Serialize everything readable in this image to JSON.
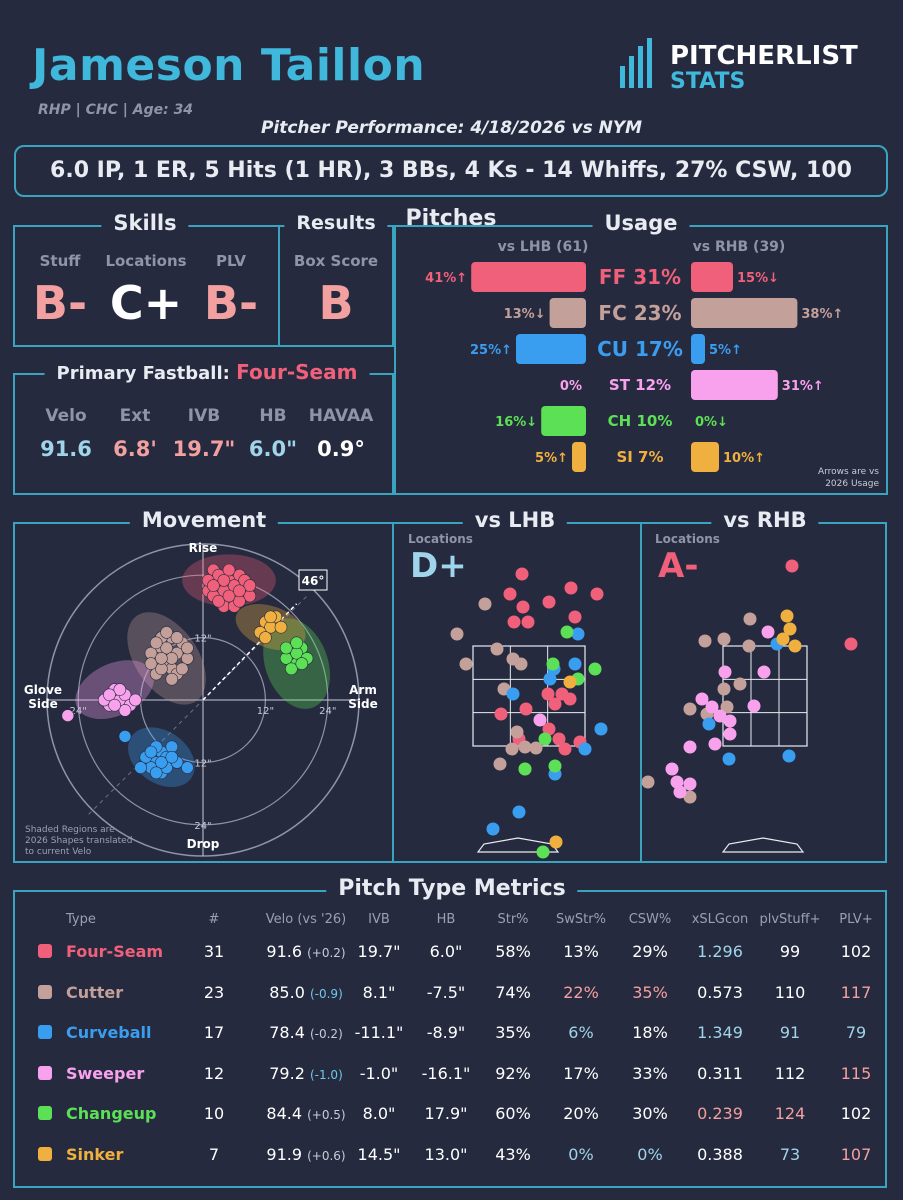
{
  "header": {
    "name": "Jameson Taillon",
    "subtitle": "RHP | CHC | Age: 34",
    "logo_line1": "PITCHERLIST",
    "logo_line2": "STATS",
    "performance": "Pitcher Performance: 4/18/2026 vs NYM",
    "statline": "6.0 IP, 1 ER, 5 Hits (1 HR), 3 BBs, 4 Ks - 14 Whiffs, 27% CSW, 100 Pitches"
  },
  "skills": {
    "title": "Skills",
    "items": [
      {
        "label": "Stuff",
        "grade": "B-",
        "color": "#f2a0a0"
      },
      {
        "label": "Locations",
        "grade": "C+",
        "color": "#ffffff"
      },
      {
        "label": "PLV",
        "grade": "B-",
        "color": "#f2a0a0"
      }
    ]
  },
  "results": {
    "title": "Results",
    "label": "Box Score",
    "grade": "B",
    "color": "#f2a0a0"
  },
  "primary": {
    "title": "Primary Fastball:",
    "pitch": "Four-Seam",
    "stats": [
      {
        "label": "Velo",
        "value": "91.6",
        "color": "#9fd4ea"
      },
      {
        "label": "Ext",
        "value": "6.8'",
        "color": "#f2a0a0"
      },
      {
        "label": "IVB",
        "value": "19.7\"",
        "color": "#f2a0a0"
      },
      {
        "label": "HB",
        "value": "6.0\"",
        "color": "#9fd4ea"
      },
      {
        "label": "HAVAA",
        "value": "0.9°",
        "color": "#ffffff"
      }
    ]
  },
  "usage": {
    "title": "Usage",
    "lhb_label": "vs LHB (61)",
    "rhb_label": "vs RHB (39)",
    "note_line1": "Arrows are vs",
    "note_line2": "2026 Usage",
    "rows": [
      {
        "label": "FF 31%",
        "color": "#f0607a",
        "lhb": 41,
        "lhb_text": "41%↑",
        "rhb": 15,
        "rhb_text": "15%↓"
      },
      {
        "label": "FC 23%",
        "color": "#c4a09a",
        "lhb": 13,
        "lhb_text": "13%↓",
        "rhb": 38,
        "rhb_text": "38%↑"
      },
      {
        "label": "CU 17%",
        "color": "#3a9ef0",
        "lhb": 25,
        "lhb_text": "25%↑",
        "rhb": 5,
        "rhb_text": "5%↑"
      },
      {
        "label": "ST 12%",
        "color": "#f8a2ee",
        "lhb": 0,
        "lhb_text": "0%",
        "rhb": 31,
        "rhb_text": "31%↑"
      },
      {
        "label": "CH 10%",
        "color": "#5ce055",
        "lhb": 16,
        "lhb_text": "16%↓",
        "rhb": 0,
        "rhb_text": "0%↓"
      },
      {
        "label": "SI 7%",
        "color": "#f0b040",
        "lhb": 5,
        "lhb_text": "5%↑",
        "rhb": 10,
        "rhb_text": "10%↑"
      }
    ]
  },
  "movement": {
    "title": "Movement",
    "rise": "Rise",
    "drop": "Drop",
    "glove": [
      "Glove",
      "Side"
    ],
    "arm": [
      "Arm",
      "Side"
    ],
    "ring_labels": [
      "12\"",
      "24\""
    ],
    "arm_angle": "46°",
    "note": [
      "Shaded Regions are",
      "2026 Shapes translated",
      "to current Velo"
    ]
  },
  "loc_lhb": {
    "title": "vs LHB",
    "label": "Locations",
    "grade": "D+",
    "color": "#9fd4ea"
  },
  "loc_rhb": {
    "title": "vs RHB",
    "label": "Locations",
    "grade": "A-",
    "color": "#f0607a"
  },
  "metrics": {
    "title": "Pitch Type Metrics",
    "headers": [
      "Type",
      "#",
      "Velo (vs '26)",
      "IVB",
      "HB",
      "Str%",
      "SwStr%",
      "CSW%",
      "xSLGcon",
      "plvStuff+",
      "PLV+"
    ],
    "rows": [
      {
        "name": "Four-Seam",
        "color": "#f0607a",
        "n": "31",
        "velo": "91.6",
        "vdiff": "(+0.2)",
        "vcol": "#c8ccd8",
        "ivb": "19.7\"",
        "hb": "6.0\"",
        "str": "58%",
        "str_c": "#ffffff",
        "sw": "13%",
        "sw_c": "#ffffff",
        "csw": "29%",
        "csw_c": "#ffffff",
        "xslg": "1.296",
        "xslg_c": "#9fd4ea",
        "stuff": "99",
        "stuff_c": "#ffffff",
        "plv": "102",
        "plv_c": "#ffffff"
      },
      {
        "name": "Cutter",
        "color": "#c4a09a",
        "n": "23",
        "velo": "85.0",
        "vdiff": "(-0.9)",
        "vcol": "#6ec8ec",
        "ivb": "8.1\"",
        "hb": "-7.5\"",
        "str": "74%",
        "str_c": "#ffffff",
        "sw": "22%",
        "sw_c": "#f2a0a0",
        "csw": "35%",
        "csw_c": "#f2a0a0",
        "xslg": "0.573",
        "xslg_c": "#ffffff",
        "stuff": "110",
        "stuff_c": "#ffffff",
        "plv": "117",
        "plv_c": "#f2a0a0"
      },
      {
        "name": "Curveball",
        "color": "#3a9ef0",
        "n": "17",
        "velo": "78.4",
        "vdiff": "(-0.2)",
        "vcol": "#c8ccd8",
        "ivb": "-11.1\"",
        "hb": "-8.9\"",
        "str": "35%",
        "str_c": "#ffffff",
        "sw": "6%",
        "sw_c": "#9fd4ea",
        "csw": "18%",
        "csw_c": "#ffffff",
        "xslg": "1.349",
        "xslg_c": "#9fd4ea",
        "stuff": "91",
        "stuff_c": "#9fd4ea",
        "plv": "79",
        "plv_c": "#9fd4ea"
      },
      {
        "name": "Sweeper",
        "color": "#f8a2ee",
        "n": "12",
        "velo": "79.2",
        "vdiff": "(-1.0)",
        "vcol": "#6ec8ec",
        "ivb": "-1.0\"",
        "hb": "-16.1\"",
        "str": "92%",
        "str_c": "#ffffff",
        "sw": "17%",
        "sw_c": "#ffffff",
        "csw": "33%",
        "csw_c": "#ffffff",
        "xslg": "0.311",
        "xslg_c": "#ffffff",
        "stuff": "112",
        "stuff_c": "#ffffff",
        "plv": "115",
        "plv_c": "#f2a0a0"
      },
      {
        "name": "Changeup",
        "color": "#5ce055",
        "n": "10",
        "velo": "84.4",
        "vdiff": "(+0.5)",
        "vcol": "#c8ccd8",
        "ivb": "8.0\"",
        "hb": "17.9\"",
        "str": "60%",
        "str_c": "#ffffff",
        "sw": "20%",
        "sw_c": "#ffffff",
        "csw": "30%",
        "csw_c": "#ffffff",
        "xslg": "0.239",
        "xslg_c": "#f2a0a0",
        "stuff": "124",
        "stuff_c": "#f2a0a0",
        "plv": "102",
        "plv_c": "#ffffff"
      },
      {
        "name": "Sinker",
        "color": "#f0b040",
        "n": "7",
        "velo": "91.9",
        "vdiff": "(+0.6)",
        "vcol": "#c8ccd8",
        "ivb": "14.5\"",
        "hb": "13.0\"",
        "str": "43%",
        "str_c": "#ffffff",
        "sw": "0%",
        "sw_c": "#9fd4ea",
        "csw": "0%",
        "csw_c": "#9fd4ea",
        "xslg": "0.388",
        "xslg_c": "#ffffff",
        "stuff": "73",
        "stuff_c": "#9fd4ea",
        "plv": "107",
        "plv_c": "#f2a0a0"
      }
    ]
  },
  "chart_data": [
    {
      "type": "bar",
      "title": "Usage",
      "categories": [
        "FF",
        "FC",
        "CU",
        "ST",
        "CH",
        "SI"
      ],
      "series": [
        {
          "name": "vs LHB (61)",
          "values": [
            41,
            13,
            25,
            0,
            16,
            5
          ]
        },
        {
          "name": "vs RHB (39)",
          "values": [
            15,
            38,
            5,
            31,
            0,
            10
          ]
        }
      ]
    },
    {
      "type": "scatter",
      "title": "Movement",
      "xlabel": "Arm Side",
      "ylabel": "Rise",
      "xlim": [
        -30,
        30
      ],
      "ylim": [
        -30,
        30
      ],
      "series": [
        {
          "name": "FF",
          "color": "#f0607a",
          "points": [
            [
              2,
              23
            ],
            [
              3,
              22
            ],
            [
              4,
              24
            ],
            [
              5,
              21
            ],
            [
              6,
              23
            ],
            [
              7,
              22
            ],
            [
              1,
              21
            ],
            [
              3,
              20
            ],
            [
              5,
              19
            ],
            [
              8,
              21
            ],
            [
              4,
              18
            ],
            [
              6,
              20
            ],
            [
              2,
              25
            ],
            [
              7,
              24
            ],
            [
              3,
              24
            ],
            [
              9,
              20
            ],
            [
              5,
              23
            ],
            [
              1,
              23
            ],
            [
              6,
              18
            ],
            [
              4,
              21
            ],
            [
              8,
              23
            ],
            [
              2,
              20
            ],
            [
              7,
              19
            ],
            [
              5,
              25
            ],
            [
              3,
              19
            ],
            [
              6,
              22
            ],
            [
              4,
              23
            ],
            [
              9,
              22
            ],
            [
              5,
              20
            ],
            [
              2,
              22
            ],
            [
              7,
              21
            ]
          ]
        },
        {
          "name": "FC",
          "color": "#c4a09a",
          "points": [
            [
              -6,
              12
            ],
            [
              -8,
              10
            ],
            [
              -5,
              9
            ],
            [
              -7,
              7
            ],
            [
              -9,
              8
            ],
            [
              -4,
              11
            ],
            [
              -6,
              6
            ],
            [
              -8,
              12
            ],
            [
              -10,
              9
            ],
            [
              -5,
              5
            ],
            [
              -7,
              10
            ],
            [
              -3,
              8
            ],
            [
              -9,
              5
            ],
            [
              -6,
              8
            ],
            [
              -8,
              6
            ],
            [
              -4,
              6
            ],
            [
              -7,
              13
            ],
            [
              -10,
              7
            ],
            [
              -5,
              12
            ],
            [
              -6,
              4
            ],
            [
              -3,
              10
            ],
            [
              -9,
              11
            ],
            [
              -8,
              8
            ]
          ]
        },
        {
          "name": "CU",
          "color": "#3a9ef0",
          "points": [
            [
              -8,
              -10
            ],
            [
              -9,
              -12
            ],
            [
              -7,
              -11
            ],
            [
              -10,
              -13
            ],
            [
              -6,
              -9
            ],
            [
              -8,
              -14
            ],
            [
              -11,
              -11
            ],
            [
              -7,
              -13
            ],
            [
              -9,
              -9
            ],
            [
              -5,
              -12
            ],
            [
              -10,
              -10
            ],
            [
              -8,
              -12
            ],
            [
              -12,
              -13
            ],
            [
              -6,
              -11
            ],
            [
              -9,
              -14
            ],
            [
              -15,
              -7
            ],
            [
              -3,
              -13
            ]
          ]
        },
        {
          "name": "ST",
          "color": "#f8a2ee",
          "points": [
            [
              -16,
              0
            ],
            [
              -18,
              -1
            ],
            [
              -15,
              1
            ],
            [
              -17,
              2
            ],
            [
              -14,
              -1
            ],
            [
              -19,
              0
            ],
            [
              -16,
              2
            ],
            [
              -13,
              0
            ],
            [
              -18,
              1
            ],
            [
              -15,
              -2
            ],
            [
              -17,
              -1
            ],
            [
              -26,
              -3
            ]
          ]
        },
        {
          "name": "CH",
          "color": "#5ce055",
          "points": [
            [
              17,
              9
            ],
            [
              18,
              7
            ],
            [
              16,
              8
            ],
            [
              19,
              10
            ],
            [
              17,
              6
            ],
            [
              18,
              9
            ],
            [
              20,
              8
            ],
            [
              16,
              10
            ],
            [
              19,
              7
            ],
            [
              18,
              11
            ]
          ]
        },
        {
          "name": "SI",
          "color": "#f0b040",
          "points": [
            [
              12,
              15
            ],
            [
              13,
              14
            ],
            [
              14,
              16
            ],
            [
              11,
              13
            ],
            [
              15,
              14
            ],
            [
              13,
              16
            ],
            [
              12,
              12
            ]
          ]
        }
      ]
    }
  ]
}
